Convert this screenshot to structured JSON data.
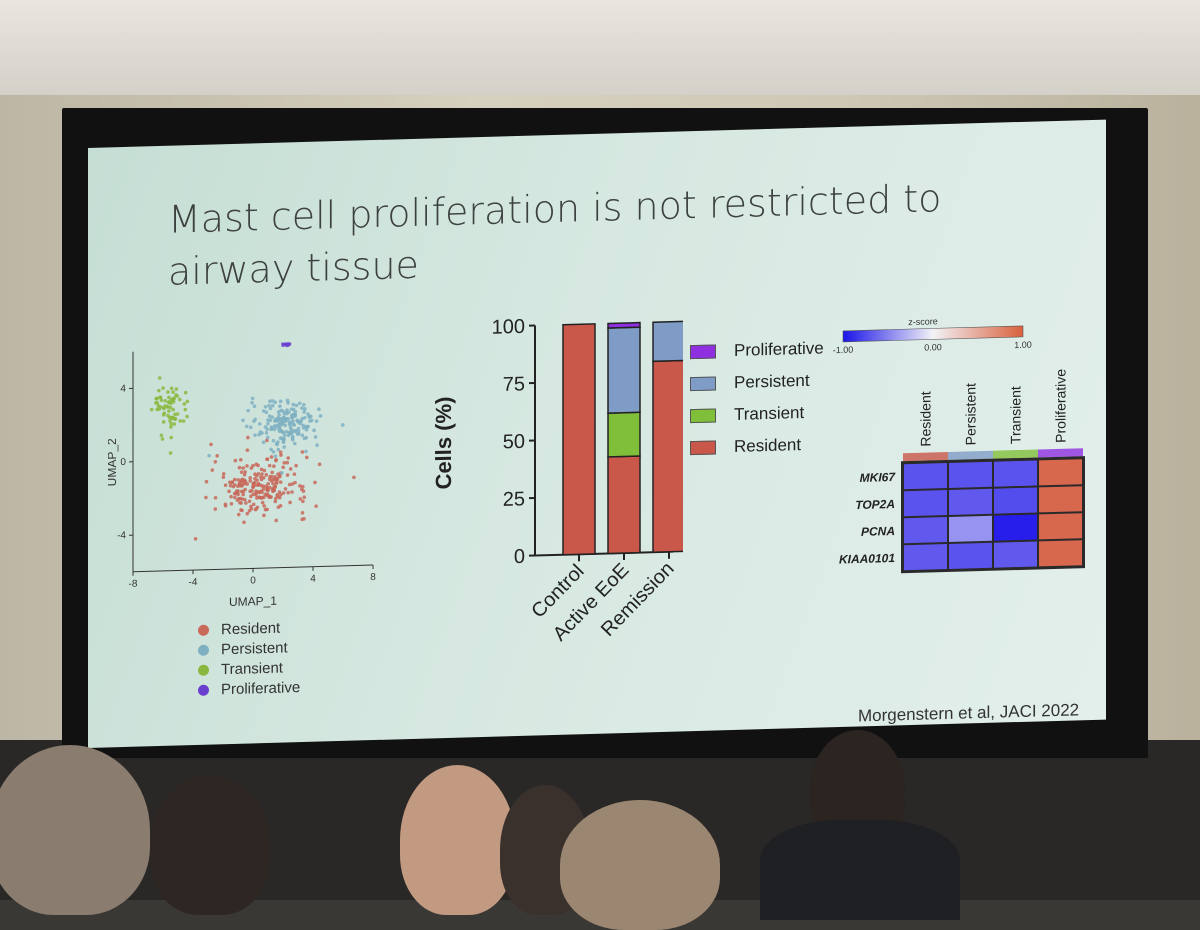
{
  "slide": {
    "title": "Mast cell proliferation is not restricted to\nairway tissue",
    "citation": "Morgenstern et al, JACI 2022"
  },
  "colors": {
    "resident": "#c8695a",
    "persistent": "#7fb0c2",
    "transient": "#8ab83f",
    "proliferative": "#6a3fd0",
    "bar_resident": "#c9584a",
    "bar_persistent": "#7f9cc7",
    "bar_transient": "#7fbf3a",
    "bar_proliferative": "#8f2fe0"
  },
  "chart_data": [
    {
      "type": "scatter",
      "xlabel": "UMAP_1",
      "ylabel": "UMAP_2",
      "xlim": [
        -8,
        8
      ],
      "ylim": [
        -6,
        6
      ],
      "xticks": [
        "-8",
        "-4",
        "0",
        "4",
        "8"
      ],
      "yticks": [
        "-4",
        "0",
        "4"
      ],
      "legend": [
        "Resident",
        "Persistent",
        "Transient",
        "Proliferative"
      ],
      "clusters": [
        {
          "name": "Resident",
          "center": [
            0.5,
            -1.5
          ],
          "spread": [
            3.2,
            1.6
          ],
          "n": 230
        },
        {
          "name": "Persistent",
          "center": [
            2.2,
            1.8
          ],
          "spread": [
            2.4,
            1.3
          ],
          "n": 180
        },
        {
          "name": "Transient",
          "center": [
            -5.5,
            2.8
          ],
          "spread": [
            1.1,
            1.5
          ],
          "n": 70
        },
        {
          "name": "Proliferative",
          "center": [
            2.2,
            6.2
          ],
          "spread": [
            0.3,
            0.2
          ],
          "n": 10
        }
      ]
    },
    {
      "type": "bar",
      "stacked": true,
      "ylabel": "Cells (%)",
      "ylim": [
        0,
        100
      ],
      "yticks": [
        "0",
        "25",
        "50",
        "75",
        "100"
      ],
      "categories": [
        "Control",
        "Active EoE",
        "Remission"
      ],
      "legend": [
        "Proliferative",
        "Persistent",
        "Transient",
        "Resident"
      ],
      "series": [
        {
          "name": "Resident",
          "values": [
            100,
            42,
            83
          ]
        },
        {
          "name": "Transient",
          "values": [
            0,
            19,
            0
          ]
        },
        {
          "name": "Persistent",
          "values": [
            0,
            37,
            17
          ]
        },
        {
          "name": "Proliferative",
          "values": [
            0,
            2,
            0
          ]
        }
      ]
    },
    {
      "type": "heatmap",
      "colorbar_title": "z-score",
      "colorbar_ticks": [
        "-1.00",
        "0.00",
        "1.00"
      ],
      "columns": [
        "Resident",
        "Persistent",
        "Transient",
        "Proliferative"
      ],
      "rows": [
        "MKI67",
        "TOP2A",
        "PCNA",
        "KIAA0101"
      ],
      "values": [
        [
          -0.75,
          -0.75,
          -0.75,
          0.9
        ],
        [
          -0.75,
          -0.72,
          -0.78,
          0.9
        ],
        [
          -0.72,
          -0.45,
          -1.0,
          0.9
        ],
        [
          -0.72,
          -0.75,
          -0.72,
          0.9
        ]
      ]
    }
  ]
}
